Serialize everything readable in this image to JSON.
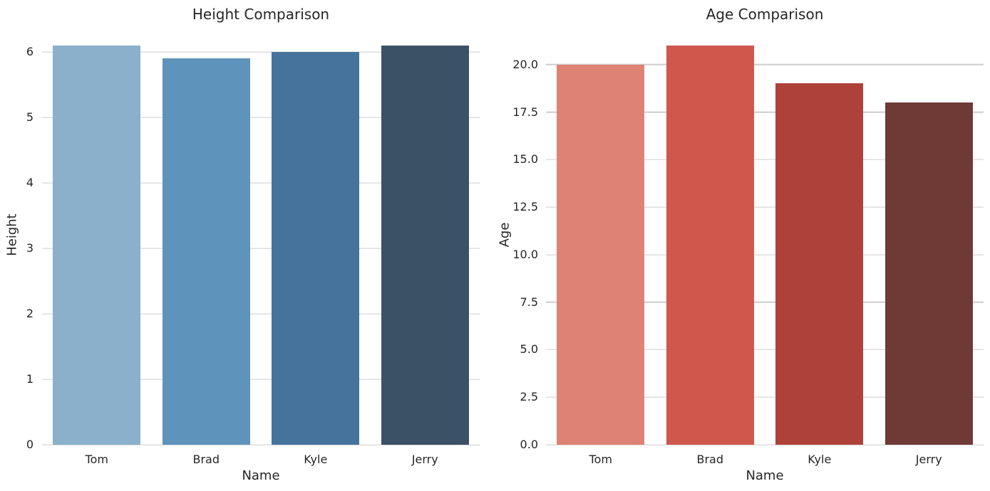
{
  "figure": {
    "background": "#ffffff",
    "text_color": "#262626",
    "grid_color": "#cccccc"
  },
  "chart_data": [
    {
      "type": "bar",
      "title": "Height Comparison",
      "xlabel": "Name",
      "ylabel": "Height",
      "categories": [
        "Tom",
        "Brad",
        "Kyle",
        "Jerry"
      ],
      "values": [
        6.1,
        5.9,
        6.0,
        6.1
      ],
      "bar_colors": [
        "#8ab0cb",
        "#5e94bc",
        "#45739b",
        "#3b5166"
      ],
      "ylim": [
        0,
        6.405
      ],
      "yticks": [
        0,
        1,
        2,
        3,
        4,
        5,
        6
      ],
      "ytick_labels": [
        "0",
        "1",
        "2",
        "3",
        "4",
        "5",
        "6"
      ],
      "grid": true,
      "legend": false
    },
    {
      "type": "bar",
      "title": "Age Comparison",
      "xlabel": "Name",
      "ylabel": "Age",
      "categories": [
        "Tom",
        "Brad",
        "Kyle",
        "Jerry"
      ],
      "values": [
        20,
        21,
        19,
        18
      ],
      "bar_colors": [
        "#de8374",
        "#cf574c",
        "#ae423b",
        "#6f3a36"
      ],
      "ylim": [
        0,
        22.05
      ],
      "yticks": [
        0,
        2.5,
        5,
        7.5,
        10,
        12.5,
        15,
        17.5,
        20
      ],
      "ytick_labels": [
        "0.0",
        "2.5",
        "5.0",
        "7.5",
        "10.0",
        "12.5",
        "15.0",
        "17.5",
        "20.0"
      ],
      "grid": true,
      "legend": false
    }
  ]
}
